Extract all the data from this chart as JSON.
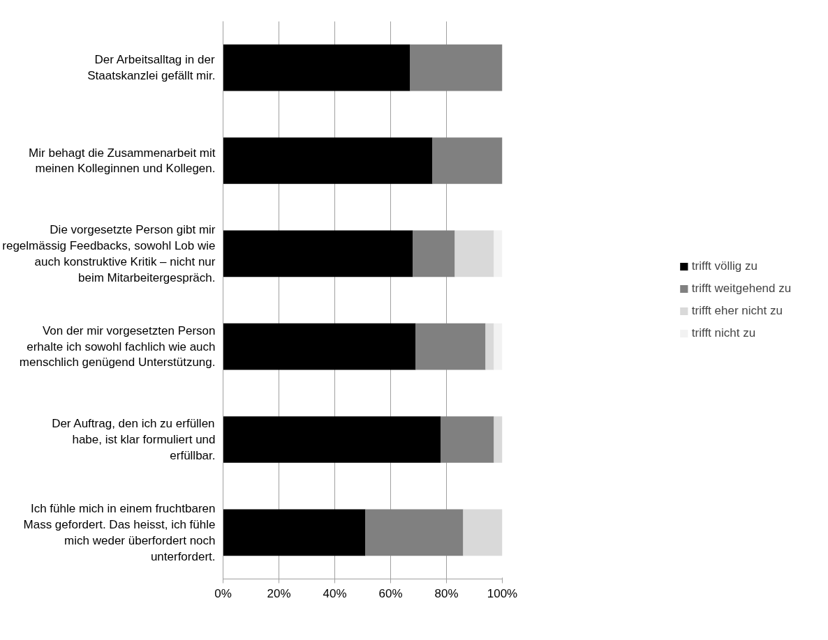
{
  "chart_data": {
    "type": "bar",
    "orientation": "horizontal",
    "stacked": true,
    "categories": [
      "Der Arbeitsalltag in der Staatskanzlei gefällt mir.",
      "Mir behagt die Zusammenarbeit mit meinen Kolleginnen und Kollegen.",
      "Die vorgesetzte Person gibt mir regelmässig Feedbacks, sowohl Lob wie auch konstruktive Kritik – nicht nur beim Mitarbeitergespräch.",
      "Von der mir vorgesetzten Person erhalte ich sowohl fachlich wie auch menschlich genügend Unterstützung.",
      "Der Auftrag, den ich zu erfüllen habe, ist klar formuliert und erfüllbar.",
      "Ich fühle mich in einem fruchtbaren Mass gefordert. Das heisst, ich fühle mich weder überfordert noch unterfordert."
    ],
    "series": [
      {
        "name": "trifft völlig zu",
        "color": "#000000",
        "values": [
          67,
          75,
          68,
          69,
          78,
          51
        ]
      },
      {
        "name": "trifft weitgehend zu",
        "color": "#808080",
        "values": [
          33,
          25,
          15,
          25,
          19,
          35
        ]
      },
      {
        "name": "trifft eher nicht zu",
        "color": "#d9d9d9",
        "values": [
          0,
          0,
          14,
          3,
          3,
          14
        ]
      },
      {
        "name": "trifft nicht zu",
        "color": "#f2f2f2",
        "values": [
          0,
          0,
          3,
          3,
          0,
          0
        ]
      }
    ],
    "xlim": [
      0,
      100
    ],
    "xticks": [
      {
        "value": 0,
        "label": "0%"
      },
      {
        "value": 20,
        "label": "20%"
      },
      {
        "value": 40,
        "label": "40%"
      },
      {
        "value": 60,
        "label": "60%"
      },
      {
        "value": 80,
        "label": "80%"
      },
      {
        "value": 100,
        "label": "100%"
      }
    ],
    "grid": "x",
    "legend": "right"
  }
}
